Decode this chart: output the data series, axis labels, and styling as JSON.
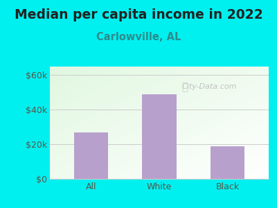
{
  "title": "Median per capita income in 2022",
  "subtitle": "Carlowville, AL",
  "categories": [
    "All",
    "White",
    "Black"
  ],
  "values": [
    27000,
    49000,
    19000
  ],
  "bar_color": "#b8a0cc",
  "title_fontsize": 13.5,
  "subtitle_fontsize": 10.5,
  "subtitle_color": "#2e8b8b",
  "title_color": "#222222",
  "bg_outer": "#00f0f0",
  "yticks": [
    0,
    20000,
    40000,
    60000
  ],
  "ytick_labels": [
    "$0",
    "$20k",
    "$40k",
    "$60k"
  ],
  "ylim": [
    0,
    65000
  ],
  "watermark": "City-Data.com",
  "tick_color": "#555544",
  "grid_color": "#cccccc"
}
